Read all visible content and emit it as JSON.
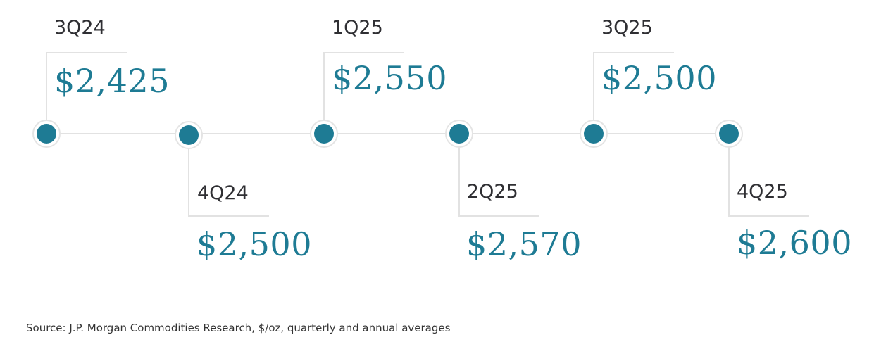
{
  "timeline": {
    "items": [
      {
        "quarter": "3Q24",
        "price": "$2,425"
      },
      {
        "quarter": "4Q24",
        "price": "$2,500"
      },
      {
        "quarter": "1Q25",
        "price": "$2,550"
      },
      {
        "quarter": "2Q25",
        "price": "$2,570"
      },
      {
        "quarter": "3Q25",
        "price": "$2,500"
      },
      {
        "quarter": "4Q25",
        "price": "$2,600"
      }
    ],
    "colors": {
      "node": "#1e7b94",
      "node_ring": "#e4e4e4",
      "line": "#e2e2e2",
      "price_text": "#1e7b94",
      "quarter_text": "#2f2f33"
    }
  },
  "footer": {
    "source": "Source: J.P. Morgan Commodities Research, $/oz, quarterly and annual averages"
  }
}
